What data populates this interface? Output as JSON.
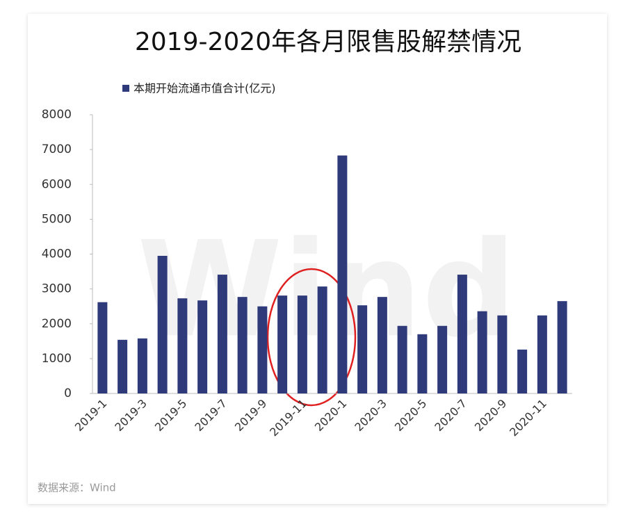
{
  "chart_data": {
    "type": "bar",
    "title": "2019-2020年各月限售股解禁情况",
    "categories": [
      "2019-1",
      null,
      "2019-3",
      null,
      "2019-5",
      null,
      "2019-7",
      null,
      "2019-9",
      null,
      "2019-11",
      null,
      "2020-1",
      null,
      "2020-3",
      null,
      "2020-5",
      null,
      "2020-7",
      null,
      "2020-9",
      null,
      "2020-11",
      null
    ],
    "series": [
      {
        "name": "本期开始流通市值合计(亿元)",
        "color": "#2e3a7a",
        "values": [
          2620,
          1540,
          1580,
          3950,
          2730,
          2670,
          3410,
          2770,
          2500,
          2810,
          2810,
          3070,
          6830,
          2530,
          2770,
          1940,
          1700,
          1940,
          3410,
          2360,
          2240,
          1260,
          2240,
          2650
        ]
      }
    ],
    "ylim": [
      0,
      8000
    ],
    "yticks": [
      0,
      1000,
      2000,
      3000,
      4000,
      5000,
      6000,
      7000,
      8000
    ],
    "legend": "top-left",
    "source": "数据来源：Wind",
    "watermark": "Wind"
  }
}
